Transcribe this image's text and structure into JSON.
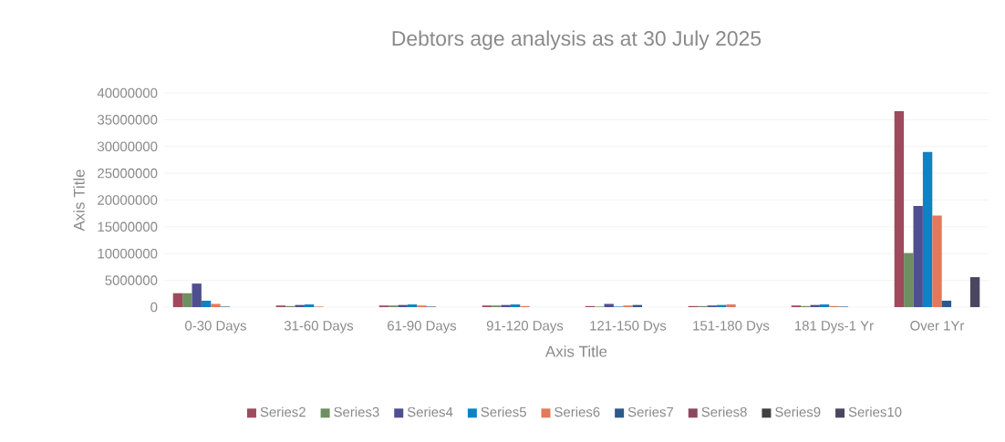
{
  "chart_data": {
    "type": "bar",
    "title": "Debtors age analysis as at 30 July 2025",
    "xlabel": "Axis Title",
    "ylabel": "Axis Title",
    "categories": [
      "0-30 Days",
      "31-60 Days",
      "61-90 Days",
      "91-120 Days",
      "121-150 Dys",
      "151-180 Dys",
      "181 Dys-1 Yr",
      "Over 1Yr"
    ],
    "series": [
      {
        "name": "Series2",
        "color": "#9e4a5c",
        "values": [
          2600000,
          300000,
          300000,
          300000,
          200000,
          200000,
          300000,
          36600000
        ]
      },
      {
        "name": "Series3",
        "color": "#6f8f62",
        "values": [
          2600000,
          200000,
          300000,
          300000,
          100000,
          200000,
          200000,
          10100000
        ]
      },
      {
        "name": "Series4",
        "color": "#4f4f8f",
        "values": [
          4400000,
          400000,
          400000,
          400000,
          600000,
          300000,
          400000,
          18900000
        ]
      },
      {
        "name": "Series5",
        "color": "#0f82c4",
        "values": [
          1200000,
          500000,
          500000,
          500000,
          100000,
          400000,
          500000,
          29000000
        ]
      },
      {
        "name": "Series6",
        "color": "#e07a5a",
        "values": [
          600000,
          100000,
          300000,
          200000,
          300000,
          500000,
          200000,
          17100000
        ]
      },
      {
        "name": "Series7",
        "color": "#2a5a8a",
        "values": [
          100000,
          0,
          100000,
          0,
          400000,
          0,
          100000,
          1200000
        ]
      },
      {
        "name": "Series8",
        "color": "#8a4a5e",
        "values": [
          0,
          0,
          0,
          0,
          0,
          0,
          0,
          0
        ]
      },
      {
        "name": "Series9",
        "color": "#404040",
        "values": [
          0,
          0,
          0,
          0,
          0,
          0,
          0,
          0
        ]
      },
      {
        "name": "Series10",
        "color": "#4a4660",
        "values": [
          0,
          0,
          0,
          0,
          0,
          0,
          0,
          5600000
        ]
      }
    ],
    "ylim": [
      0,
      40000000
    ],
    "yticks": [
      0,
      5000000,
      10000000,
      15000000,
      20000000,
      25000000,
      30000000,
      35000000,
      40000000
    ],
    "grid": "y",
    "legend": "bottom"
  }
}
